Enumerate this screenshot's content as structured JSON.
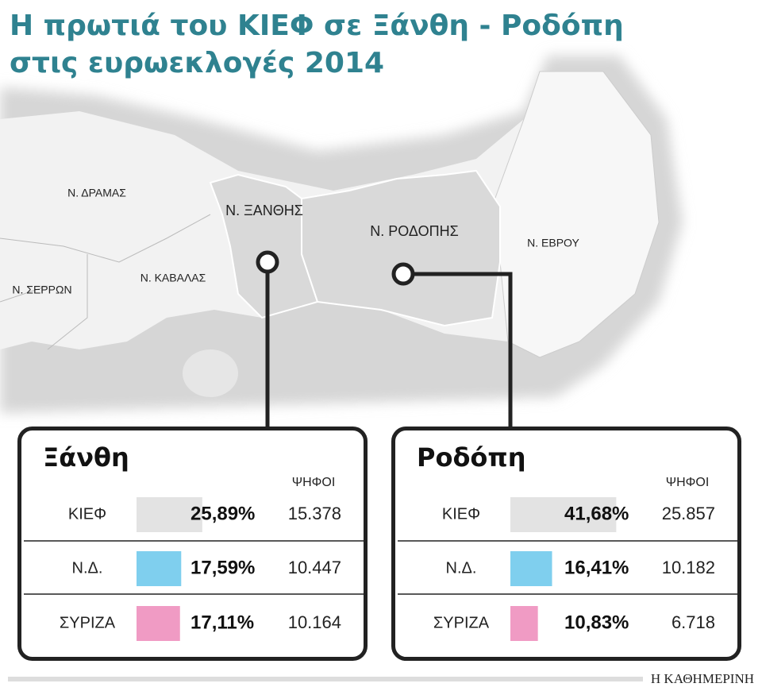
{
  "title_lines": [
    "Η πρωτιά του ΚΙΕΦ σε Ξάνθη - Ροδόπη",
    "στις ευρωεκλογές 2014"
  ],
  "map_labels": {
    "drama": "Ν. ΔΡΑΜΑΣ",
    "xanthi": "Ν. ΞΑΝΘΗΣ",
    "rodopi": "Ν. ΡΟΔΟΠΗΣ",
    "evros": "Ν. ΕΒΡΟΥ",
    "serres": "Ν. ΣΕΡΡΩΝ",
    "kavala": "Ν. ΚΑΒΑΛΑΣ"
  },
  "panels": [
    {
      "title": "Ξάνθη",
      "votes_header": "ΨΗΦΟΙ",
      "rows": [
        {
          "party": "ΚΙΕΦ",
          "percent": 25.89,
          "percent_label": "25,89%",
          "votes": "15.378",
          "color": "#e3e3e3"
        },
        {
          "party": "Ν.Δ.",
          "percent": 17.59,
          "percent_label": "17,59%",
          "votes": "10.447",
          "color": "#7fcfee"
        },
        {
          "party": "ΣΥΡΙΖΑ",
          "percent": 17.11,
          "percent_label": "17,11%",
          "votes": "10.164",
          "color": "#f09bc4"
        }
      ]
    },
    {
      "title": "Ροδόπη",
      "votes_header": "ΨΗΦΟΙ",
      "rows": [
        {
          "party": "ΚΙΕΦ",
          "percent": 41.68,
          "percent_label": "41,68%",
          "votes": "25.857",
          "color": "#e3e3e3"
        },
        {
          "party": "Ν.Δ.",
          "percent": 16.41,
          "percent_label": "16,41%",
          "votes": "10.182",
          "color": "#7fcfee"
        },
        {
          "party": "ΣΥΡΙΖΑ",
          "percent": 10.83,
          "percent_label": "10,83%",
          "votes": "6.718",
          "color": "#f09bc4"
        }
      ]
    }
  ],
  "source": "Η ΚΑΘΗΜΕΡΙΝΗ"
}
